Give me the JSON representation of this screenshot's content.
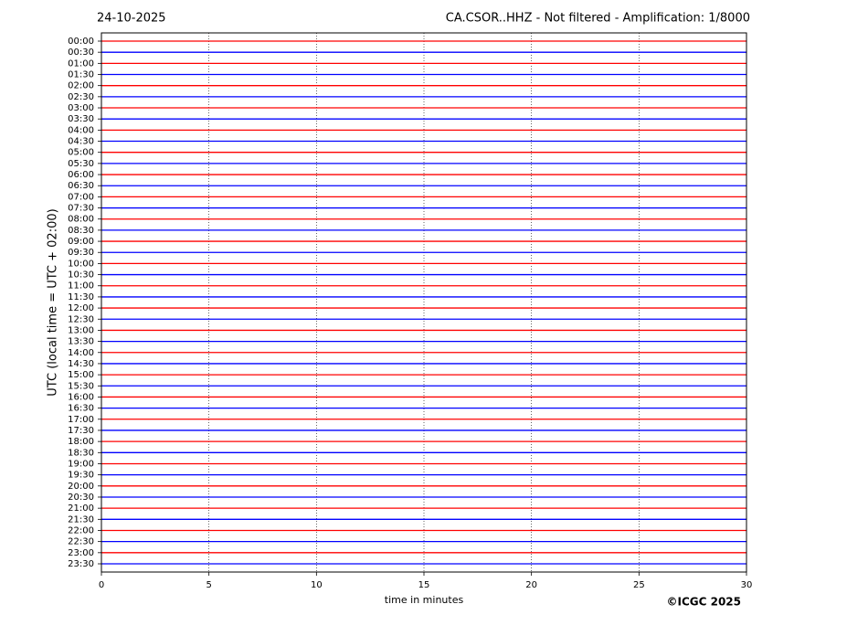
{
  "chart_data": {
    "type": "helicorder",
    "date": "24-10-2025",
    "title": "CA.CSOR..HHZ - Not filtered - Amplification: 1/8000",
    "xlabel": "time in minutes",
    "ylabel": "UTC (local time = UTC + 02:00)",
    "credit": "©ICGC 2025",
    "categories": [
      "00:00",
      "00:30",
      "01:00",
      "01:30",
      "02:00",
      "02:30",
      "03:00",
      "03:30",
      "04:00",
      "04:30",
      "05:00",
      "05:30",
      "06:00",
      "06:30",
      "07:00",
      "07:30",
      "08:00",
      "08:30",
      "09:00",
      "09:30",
      "10:00",
      "10:30",
      "11:00",
      "11:30",
      "12:00",
      "12:30",
      "13:00",
      "13:30",
      "14:00",
      "14:30",
      "15:00",
      "15:30",
      "16:00",
      "16:30",
      "17:00",
      "17:30",
      "18:00",
      "18:30",
      "19:00",
      "19:30",
      "20:00",
      "20:30",
      "21:00",
      "21:30",
      "22:00",
      "22:30",
      "23:00",
      "23:30"
    ],
    "colors": [
      "#ff0000",
      "#0000ff"
    ],
    "xlim": [
      0,
      30
    ],
    "xticks": [
      0,
      5,
      10,
      15,
      20,
      25,
      30
    ],
    "grid": true
  }
}
